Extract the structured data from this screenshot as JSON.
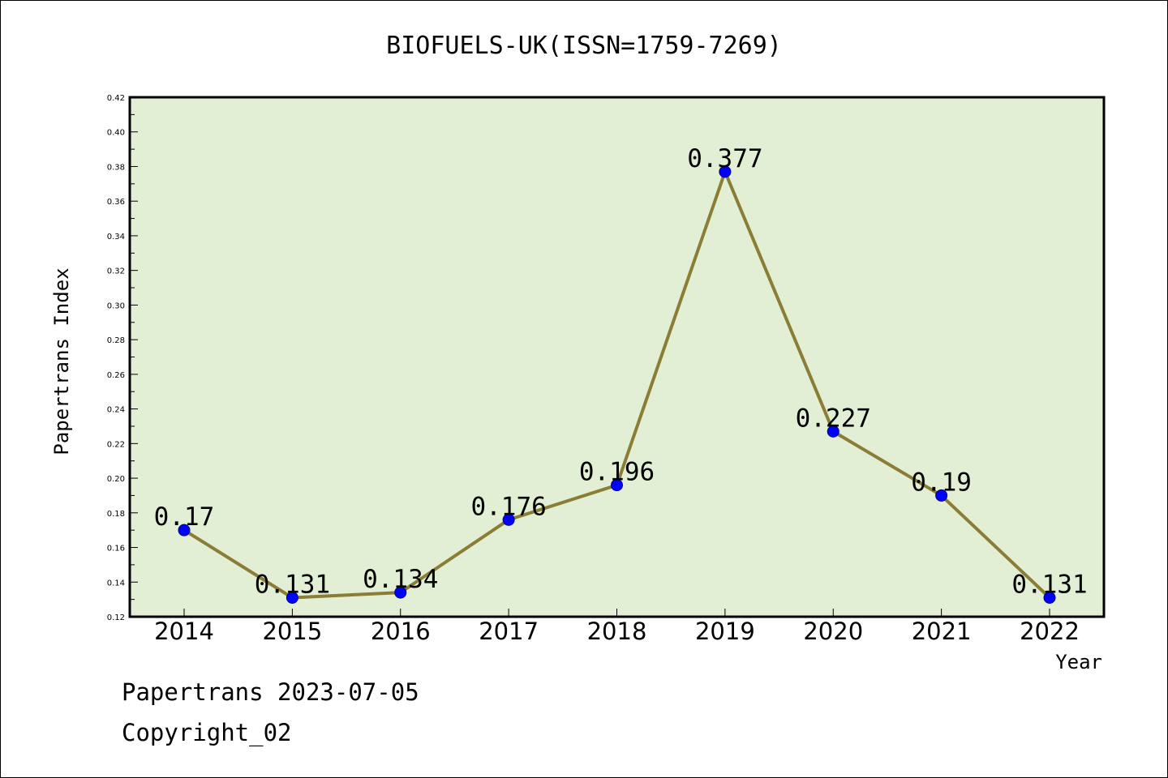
{
  "chart_data": {
    "type": "line",
    "title": "BIOFUELS-UK(ISSN=1759-7269)",
    "xlabel": "Year",
    "ylabel": "Papertrans Index",
    "categories": [
      "2014",
      "2015",
      "2016",
      "2017",
      "2018",
      "2019",
      "2020",
      "2021",
      "2022"
    ],
    "series": [
      {
        "values": [
          0.17,
          0.131,
          0.134,
          0.176,
          0.196,
          0.377,
          0.227,
          0.19,
          0.131
        ],
        "labels": [
          "0.17",
          "0.131",
          "0.134",
          "0.176",
          "0.196",
          "0.377",
          "0.227",
          "0.19",
          "0.131"
        ]
      }
    ],
    "ylim": [
      0.12,
      0.42
    ],
    "yticks": [
      "0.12",
      "0.14",
      "0.16",
      "0.18",
      "0.20",
      "0.22",
      "0.24",
      "0.26",
      "0.28",
      "0.30",
      "0.32",
      "0.34",
      "0.36",
      "0.38",
      "0.40",
      "0.42"
    ],
    "grid": false,
    "colors": {
      "plot_background": "#e2efd4",
      "line": "#8b7d35",
      "marker": "#0000ff",
      "marker_edge": "#000080"
    }
  },
  "footer": {
    "line1": "Papertrans 2023-07-05",
    "line2": "Copyright_02"
  }
}
